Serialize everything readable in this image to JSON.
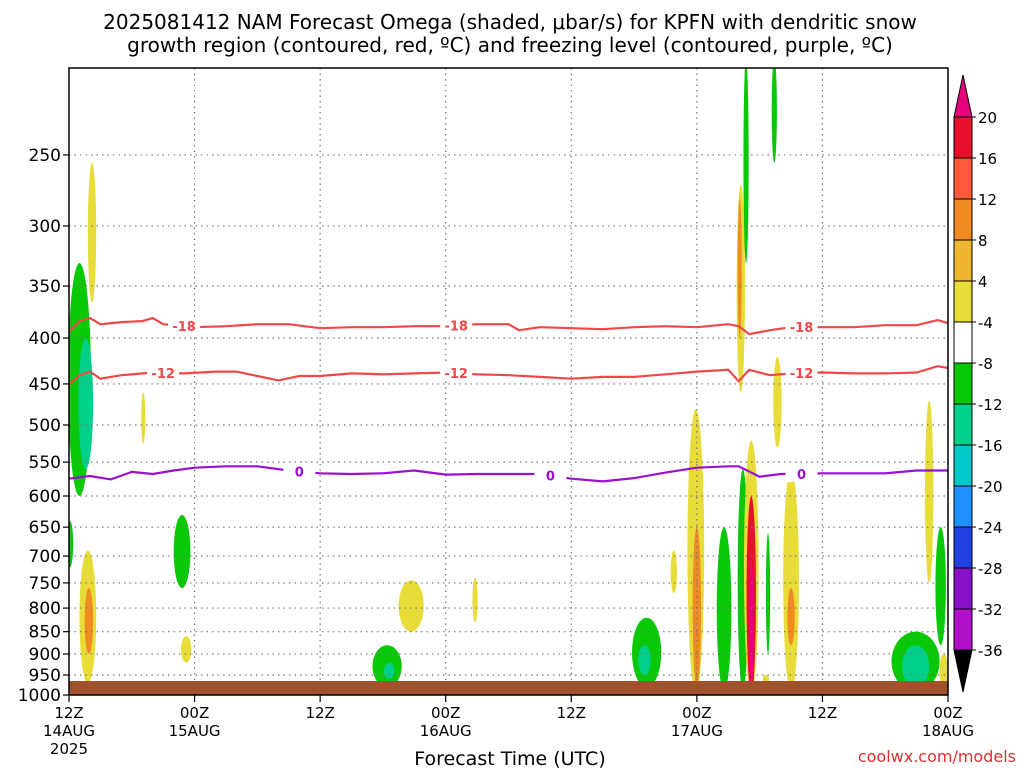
{
  "chart_data": {
    "type": "heatmap",
    "title_line1": "2025081412 NAM Forecast Omega (shaded, μbar/s) for KPFN with dendritic snow",
    "title_line2": "growth region (contoured, red, ºC) and freezing level (contoured, purple, ºC)",
    "xlabel": "Forecast Time (UTC)",
    "ylabel": "",
    "credit": "coolwx.com/models",
    "x_range_hours": [
      0,
      84
    ],
    "y_range_hpa": [
      1000,
      200
    ],
    "y_scale": "log",
    "grid": true,
    "x_ticks": [
      {
        "hour": 0,
        "l1": "12Z",
        "l2": "14AUG",
        "l3": "2025"
      },
      {
        "hour": 12,
        "l1": "00Z",
        "l2": "15AUG",
        "l3": ""
      },
      {
        "hour": 24,
        "l1": "12Z",
        "l2": "",
        "l3": ""
      },
      {
        "hour": 36,
        "l1": "00Z",
        "l2": "16AUG",
        "l3": ""
      },
      {
        "hour": 48,
        "l1": "12Z",
        "l2": "",
        "l3": ""
      },
      {
        "hour": 60,
        "l1": "00Z",
        "l2": "17AUG",
        "l3": ""
      },
      {
        "hour": 72,
        "l1": "12Z",
        "l2": "",
        "l3": ""
      },
      {
        "hour": 84,
        "l1": "00Z",
        "l2": "18AUG",
        "l3": ""
      }
    ],
    "y_ticks": [
      250,
      300,
      350,
      400,
      450,
      500,
      550,
      600,
      650,
      700,
      750,
      800,
      850,
      900,
      950,
      1000
    ],
    "colorbar": {
      "labels": [
        "20",
        "16",
        "12",
        "8",
        "4",
        "-4",
        "-8",
        "-12",
        "-16",
        "-20",
        "-24",
        "-28",
        "-32",
        "-36"
      ],
      "colors": [
        "#e8102a",
        "#ff5a3c",
        "#f08a22",
        "#f0b630",
        "#e7dc38",
        "#ffffff",
        "#08c808",
        "#00d08a",
        "#00c8c8",
        "#1e90ff",
        "#2040e0",
        "#8a10c8",
        "#b010c8",
        "#a0a0a0"
      ],
      "top_arrow": "#e6007e",
      "bottom_arrow": "#000000"
    },
    "contours": [
      {
        "name": "dgz_top",
        "label": "-18",
        "color": "#f04848",
        "label_hours": [
          11,
          37,
          70
        ],
        "points": [
          [
            0,
            394
          ],
          [
            1,
            383
          ],
          [
            2,
            380
          ],
          [
            3,
            386
          ],
          [
            5,
            384
          ],
          [
            7,
            383
          ],
          [
            8,
            380
          ],
          [
            9,
            386
          ],
          [
            12,
            389
          ],
          [
            15,
            388
          ],
          [
            18,
            386
          ],
          [
            21,
            386
          ],
          [
            24,
            390
          ],
          [
            27,
            389
          ],
          [
            30,
            389
          ],
          [
            33,
            388
          ],
          [
            36,
            388
          ],
          [
            39,
            386
          ],
          [
            42,
            386
          ],
          [
            43,
            392
          ],
          [
            45,
            389
          ],
          [
            48,
            390
          ],
          [
            51,
            391
          ],
          [
            54,
            389
          ],
          [
            57,
            388
          ],
          [
            60,
            389
          ],
          [
            63,
            386
          ],
          [
            64,
            388
          ],
          [
            65,
            396
          ],
          [
            67,
            392
          ],
          [
            69,
            389
          ],
          [
            72,
            389
          ],
          [
            75,
            389
          ],
          [
            78,
            387
          ],
          [
            81,
            387
          ],
          [
            83,
            382
          ],
          [
            84,
            385
          ]
        ]
      },
      {
        "name": "dgz_bottom",
        "label": "-12",
        "color": "#f04848",
        "label_hours": [
          9,
          37,
          70
        ],
        "points": [
          [
            0,
            451
          ],
          [
            1,
            440
          ],
          [
            2,
            436
          ],
          [
            3,
            444
          ],
          [
            5,
            440
          ],
          [
            8,
            437
          ],
          [
            11,
            438
          ],
          [
            14,
            436
          ],
          [
            16,
            436
          ],
          [
            18,
            441
          ],
          [
            20,
            446
          ],
          [
            22,
            441
          ],
          [
            24,
            441
          ],
          [
            27,
            438
          ],
          [
            30,
            439
          ],
          [
            33,
            438
          ],
          [
            36,
            437
          ],
          [
            39,
            439
          ],
          [
            42,
            440
          ],
          [
            45,
            442
          ],
          [
            48,
            444
          ],
          [
            51,
            442
          ],
          [
            54,
            442
          ],
          [
            57,
            439
          ],
          [
            60,
            436
          ],
          [
            63,
            434
          ],
          [
            64,
            447
          ],
          [
            65,
            434
          ],
          [
            67,
            440
          ],
          [
            69,
            438
          ],
          [
            72,
            437
          ],
          [
            75,
            438
          ],
          [
            78,
            438
          ],
          [
            81,
            437
          ],
          [
            83,
            430
          ],
          [
            84,
            432
          ]
        ]
      },
      {
        "name": "freezing_level",
        "label": "0",
        "color": "#9a10d0",
        "label_hours": [
          22,
          46,
          70
        ],
        "points": [
          [
            0,
            574
          ],
          [
            2,
            570
          ],
          [
            4,
            575
          ],
          [
            6,
            564
          ],
          [
            8,
            567
          ],
          [
            10,
            562
          ],
          [
            12,
            558
          ],
          [
            15,
            556
          ],
          [
            18,
            556
          ],
          [
            21,
            562
          ],
          [
            24,
            566
          ],
          [
            27,
            567
          ],
          [
            30,
            566
          ],
          [
            33,
            562
          ],
          [
            36,
            568
          ],
          [
            39,
            567
          ],
          [
            42,
            567
          ],
          [
            45,
            567
          ],
          [
            48,
            574
          ],
          [
            51,
            578
          ],
          [
            54,
            573
          ],
          [
            57,
            565
          ],
          [
            60,
            558
          ],
          [
            63,
            556
          ],
          [
            64,
            556
          ],
          [
            66,
            571
          ],
          [
            68,
            567
          ],
          [
            70,
            567
          ],
          [
            72,
            566
          ],
          [
            75,
            566
          ],
          [
            78,
            566
          ],
          [
            81,
            562
          ],
          [
            84,
            562
          ]
        ]
      }
    ],
    "shaded_regions": [
      {
        "value": -6,
        "hour": 1.0,
        "p_top": 330,
        "p_bot": 600,
        "half_width_h": 1.1
      },
      {
        "value": -13,
        "hour": 1.6,
        "p_top": 400,
        "p_bot": 560,
        "half_width_h": 0.7
      },
      {
        "value": -6,
        "hour": 0.1,
        "p_top": 640,
        "p_bot": 720,
        "half_width_h": 0.3
      },
      {
        "value": 6,
        "hour": 2.2,
        "p_top": 255,
        "p_bot": 365,
        "half_width_h": 0.4
      },
      {
        "value": 6,
        "hour": 1.8,
        "p_top": 690,
        "p_bot": 970,
        "half_width_h": 0.8
      },
      {
        "value": 9,
        "hour": 1.9,
        "p_top": 760,
        "p_bot": 900,
        "half_width_h": 0.4
      },
      {
        "value": 6,
        "hour": 7.1,
        "p_top": 460,
        "p_bot": 525,
        "half_width_h": 0.15
      },
      {
        "value": -6,
        "hour": 10.8,
        "p_top": 630,
        "p_bot": 760,
        "half_width_h": 0.8
      },
      {
        "value": 6,
        "hour": 11.2,
        "p_top": 860,
        "p_bot": 920,
        "half_width_h": 0.5
      },
      {
        "value": -6,
        "hour": 30.4,
        "p_top": 880,
        "p_bot": 980,
        "half_width_h": 1.4
      },
      {
        "value": -13,
        "hour": 30.6,
        "p_top": 920,
        "p_bot": 960,
        "half_width_h": 0.5
      },
      {
        "value": 6,
        "hour": 32.7,
        "p_top": 745,
        "p_bot": 850,
        "half_width_h": 1.2
      },
      {
        "value": 6,
        "hour": 38.8,
        "p_top": 740,
        "p_bot": 830,
        "half_width_h": 0.25
      },
      {
        "value": -6,
        "hour": 55.2,
        "p_top": 820,
        "p_bot": 980,
        "half_width_h": 1.4
      },
      {
        "value": -13,
        "hour": 55.0,
        "p_top": 880,
        "p_bot": 950,
        "half_width_h": 0.6
      },
      {
        "value": 6,
        "hour": 57.8,
        "p_top": 690,
        "p_bot": 770,
        "half_width_h": 0.3
      },
      {
        "value": 6,
        "hour": 59.9,
        "p_top": 480,
        "p_bot": 995,
        "half_width_h": 0.8
      },
      {
        "value": 10,
        "hour": 60.0,
        "p_top": 650,
        "p_bot": 980,
        "half_width_h": 0.4
      },
      {
        "value": -6,
        "hour": 62.6,
        "p_top": 650,
        "p_bot": 990,
        "half_width_h": 0.7
      },
      {
        "value": 6,
        "hour": 64.2,
        "p_top": 270,
        "p_bot": 460,
        "half_width_h": 0.4
      },
      {
        "value": 10,
        "hour": 64.1,
        "p_top": 280,
        "p_bot": 400,
        "half_width_h": 0.15
      },
      {
        "value": -6,
        "hour": 64.4,
        "p_top": 560,
        "p_bot": 990,
        "half_width_h": 0.5
      },
      {
        "value": 6,
        "hour": 65.2,
        "p_top": 520,
        "p_bot": 1000,
        "half_width_h": 0.7
      },
      {
        "value": 17,
        "hour": 65.2,
        "p_top": 600,
        "p_bot": 995,
        "half_width_h": 0.45
      },
      {
        "value": 22,
        "hour": 65.2,
        "p_top": 700,
        "p_bot": 990,
        "half_width_h": 0.2
      },
      {
        "value": -6,
        "hour": 64.7,
        "p_top": 195,
        "p_bot": 330,
        "half_width_h": 0.25
      },
      {
        "value": -6,
        "hour": 67.4,
        "p_top": 195,
        "p_bot": 255,
        "half_width_h": 0.25
      },
      {
        "value": -6,
        "hour": 66.8,
        "p_top": 660,
        "p_bot": 900,
        "half_width_h": 0.2
      },
      {
        "value": 6,
        "hour": 66.6,
        "p_top": 950,
        "p_bot": 970,
        "half_width_h": 0.3
      },
      {
        "value": 6,
        "hour": 67.7,
        "p_top": 420,
        "p_bot": 530,
        "half_width_h": 0.4
      },
      {
        "value": 6,
        "hour": 69.0,
        "p_top": 560,
        "p_bot": 990,
        "half_width_h": 0.75
      },
      {
        "value": 9,
        "hour": 69.0,
        "p_top": 760,
        "p_bot": 880,
        "half_width_h": 0.35
      },
      {
        "value": -6,
        "hour": 80.9,
        "p_top": 850,
        "p_bot": 990,
        "half_width_h": 2.3
      },
      {
        "value": -13,
        "hour": 80.9,
        "p_top": 880,
        "p_bot": 980,
        "half_width_h": 1.3
      },
      {
        "value": -6,
        "hour": 83.3,
        "p_top": 650,
        "p_bot": 880,
        "half_width_h": 0.5
      },
      {
        "value": 6,
        "hour": 82.2,
        "p_top": 470,
        "p_bot": 750,
        "half_width_h": 0.4
      },
      {
        "value": 6,
        "hour": 83.6,
        "p_top": 900,
        "p_bot": 985,
        "half_width_h": 0.4
      }
    ],
    "surface_color": "#a0522d"
  }
}
